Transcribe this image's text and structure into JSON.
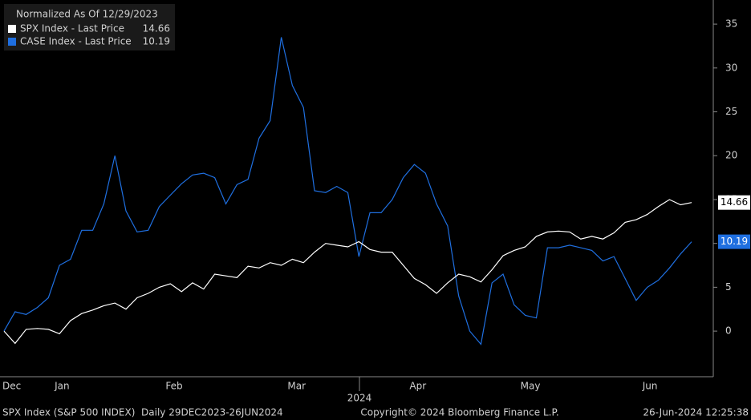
{
  "chart_data": {
    "type": "line",
    "title": "Normalized As Of 12/29/2023",
    "x_label": "2024",
    "categories": [
      "Dec",
      null,
      null,
      null,
      null,
      "Jan",
      null,
      null,
      null,
      null,
      null,
      null,
      null,
      null,
      null,
      "Feb",
      null,
      null,
      null,
      null,
      null,
      null,
      null,
      null,
      null,
      null,
      "Mar",
      null,
      null,
      null,
      null,
      null,
      null,
      null,
      null,
      null,
      null,
      "Apr",
      null,
      null,
      null,
      null,
      null,
      null,
      null,
      null,
      null,
      "May",
      null,
      null,
      null,
      null,
      null,
      null,
      null,
      null,
      null,
      null,
      "Jun",
      null,
      null,
      null,
      null
    ],
    "series": [
      {
        "name": "SPX Index - Last Price",
        "color": "#ffffff",
        "values": [
          0,
          -1.4,
          0.2,
          0.3,
          0.2,
          -0.3,
          1.2,
          2,
          2.4,
          2.9,
          3.2,
          2.5,
          3.8,
          4.3,
          5,
          5.4,
          4.5,
          5.5,
          4.8,
          6.5,
          6.3,
          6.1,
          7.4,
          7.2,
          7.8,
          7.5,
          8.2,
          7.8,
          9,
          10,
          9.8,
          9.6,
          10.2,
          9.3,
          9,
          9,
          7.5,
          6,
          5.3,
          4.3,
          5.5,
          6.5,
          6.2,
          5.6,
          7,
          8.6,
          9.2,
          9.6,
          10.8,
          11.3,
          11.4,
          11.3,
          10.5,
          10.8,
          10.5,
          11.2,
          12.4,
          12.7,
          13.3,
          14.2,
          15,
          14.4,
          14.66
        ]
      },
      {
        "name": "CASE Index - Last Price",
        "color": "#1f6fe0",
        "values": [
          0,
          2.2,
          1.9,
          2.7,
          3.8,
          7.5,
          8.2,
          11.5,
          11.5,
          14.5,
          20,
          13.7,
          11.3,
          11.5,
          14.2,
          15.5,
          16.8,
          17.8,
          18,
          17.5,
          14.5,
          16.7,
          17.3,
          22,
          24,
          33.5,
          28,
          25.5,
          16,
          15.8,
          16.5,
          15.8,
          8.5,
          13.5,
          13.5,
          15,
          17.5,
          19,
          18,
          14.5,
          12,
          4,
          0,
          -1.5,
          5.5,
          6.5,
          3,
          1.8,
          1.5,
          9.5,
          9.5,
          9.8,
          9.5,
          9.2,
          8,
          8.5,
          6,
          3.5,
          5,
          5.8,
          7.2,
          8.8,
          10.19
        ]
      }
    ],
    "ylim": [
      -5.2,
      37.75
    ],
    "yticks": [
      0,
      5,
      10,
      15,
      20,
      25,
      30,
      35
    ],
    "grid": false,
    "legend": "top-left",
    "footer": {
      "left": "SPX Index (S&P 500 INDEX)  Daily 29DEC2023-26JUN2024",
      "center": "Copyright© 2024 Bloomberg Finance L.P.",
      "right": "26-Jun-2024 12:25:38"
    }
  }
}
